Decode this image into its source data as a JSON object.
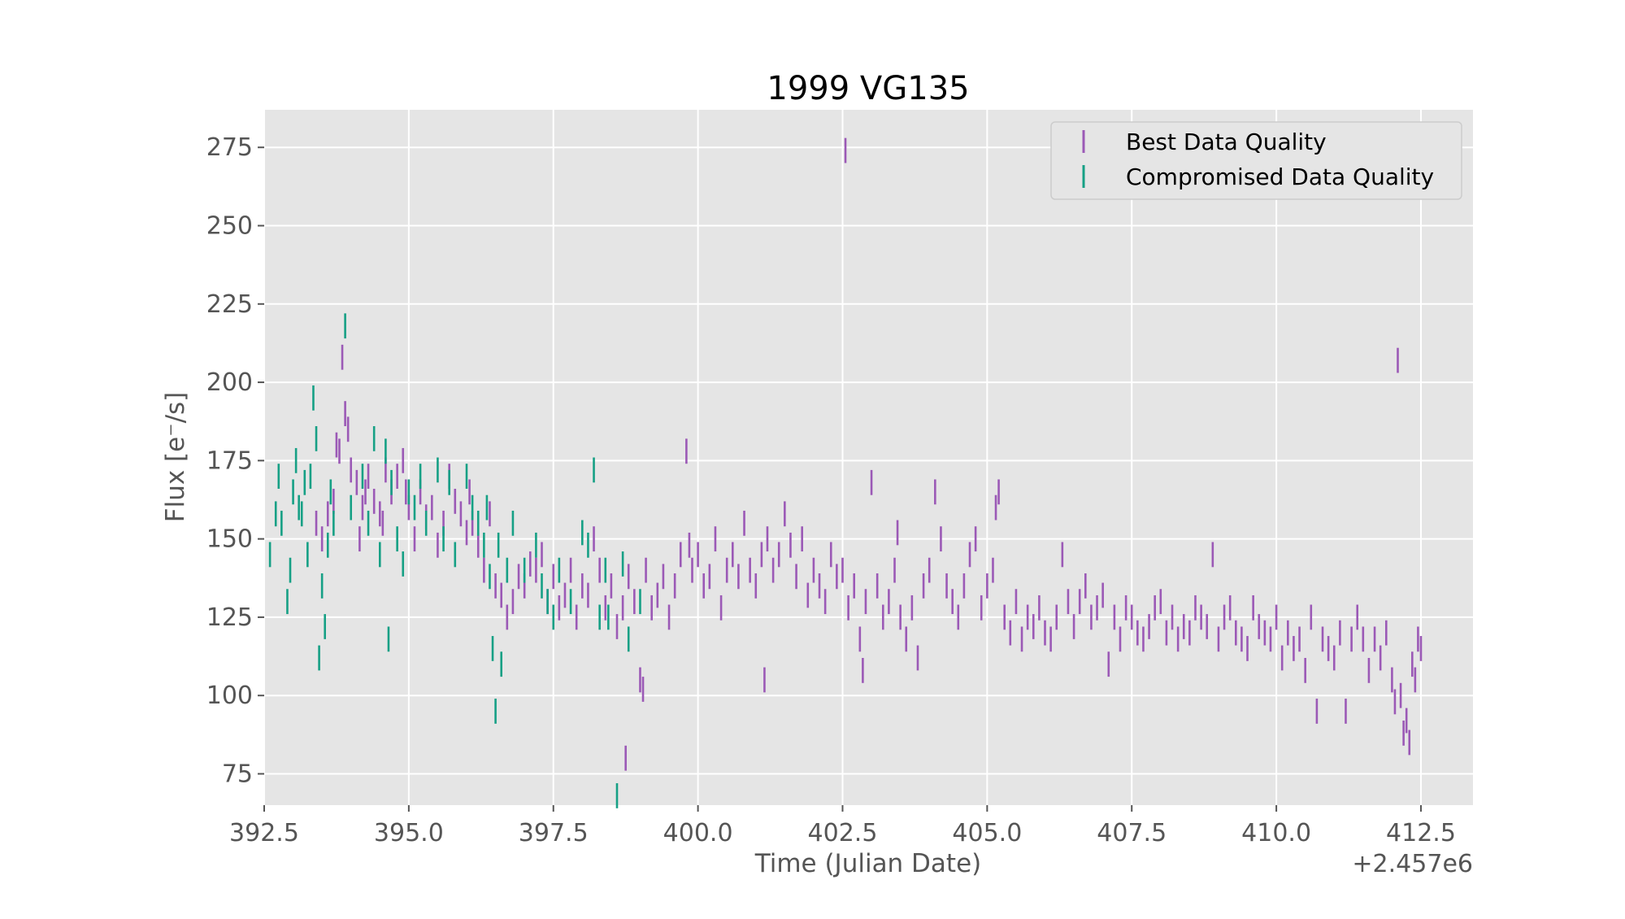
{
  "chart_data": {
    "type": "scatter",
    "title": "1999 VG135",
    "xlabel": "Time (Julian Date)",
    "ylabel": "Flux [e⁻/s]",
    "x_offset_label": "+2.457e6",
    "xlim": [
      392.5,
      413.4
    ],
    "ylim": [
      65,
      287
    ],
    "xticks": [
      392.5,
      395.0,
      397.5,
      400.0,
      402.5,
      405.0,
      407.5,
      410.0,
      412.5
    ],
    "xtick_labels": [
      "392.5",
      "395.0",
      "397.5",
      "400.0",
      "402.5",
      "405.0",
      "407.5",
      "410.0",
      "412.5"
    ],
    "yticks": [
      75,
      100,
      125,
      150,
      175,
      200,
      225,
      250,
      275
    ],
    "ytick_labels": [
      "75",
      "100",
      "125",
      "150",
      "175",
      "200",
      "225",
      "250",
      "275"
    ],
    "grid": true,
    "legend_position": "top-right",
    "error_bar": 4,
    "series": [
      {
        "name": "Best Data Quality",
        "color": "#9b59b6",
        "points": [
          [
            393.4,
            155
          ],
          [
            393.5,
            150
          ],
          [
            393.6,
            158
          ],
          [
            393.7,
            162
          ],
          [
            393.75,
            180
          ],
          [
            393.8,
            178
          ],
          [
            393.85,
            208
          ],
          [
            393.9,
            190
          ],
          [
            393.95,
            185
          ],
          [
            394.0,
            172
          ],
          [
            394.1,
            168
          ],
          [
            394.15,
            150
          ],
          [
            394.2,
            160
          ],
          [
            394.25,
            165
          ],
          [
            394.3,
            170
          ],
          [
            394.4,
            162
          ],
          [
            394.5,
            158
          ],
          [
            394.55,
            155
          ],
          [
            394.6,
            172
          ],
          [
            394.7,
            165
          ],
          [
            394.8,
            170
          ],
          [
            394.9,
            175
          ],
          [
            394.95,
            165
          ],
          [
            395.0,
            160
          ],
          [
            395.1,
            150
          ],
          [
            395.2,
            165
          ],
          [
            395.3,
            157
          ],
          [
            395.4,
            160
          ],
          [
            395.5,
            148
          ],
          [
            395.6,
            155
          ],
          [
            395.7,
            170
          ],
          [
            395.8,
            162
          ],
          [
            395.9,
            158
          ],
          [
            396.0,
            152
          ],
          [
            396.05,
            165
          ],
          [
            396.1,
            155
          ],
          [
            396.2,
            148
          ],
          [
            396.3,
            140
          ],
          [
            396.4,
            158
          ],
          [
            396.5,
            135
          ],
          [
            396.6,
            132
          ],
          [
            396.7,
            125
          ],
          [
            396.8,
            130
          ],
          [
            396.9,
            138
          ],
          [
            397.0,
            135
          ],
          [
            397.1,
            142
          ],
          [
            397.2,
            140
          ],
          [
            397.3,
            145
          ],
          [
            397.4,
            130
          ],
          [
            397.5,
            138
          ],
          [
            397.6,
            128
          ],
          [
            397.7,
            132
          ],
          [
            397.8,
            140
          ],
          [
            397.9,
            125
          ],
          [
            398.0,
            135
          ],
          [
            398.1,
            132
          ],
          [
            398.2,
            150
          ],
          [
            398.3,
            140
          ],
          [
            398.4,
            128
          ],
          [
            398.5,
            135
          ],
          [
            398.6,
            122
          ],
          [
            398.7,
            128
          ],
          [
            398.75,
            80
          ],
          [
            398.8,
            138
          ],
          [
            398.9,
            130
          ],
          [
            399.0,
            105
          ],
          [
            399.05,
            102
          ],
          [
            399.1,
            140
          ],
          [
            399.2,
            128
          ],
          [
            399.3,
            132
          ],
          [
            399.4,
            138
          ],
          [
            399.5,
            125
          ],
          [
            399.6,
            135
          ],
          [
            399.7,
            145
          ],
          [
            399.8,
            178
          ],
          [
            399.85,
            148
          ],
          [
            399.9,
            140
          ],
          [
            400.0,
            145
          ],
          [
            400.1,
            135
          ],
          [
            400.2,
            138
          ],
          [
            400.3,
            150
          ],
          [
            400.4,
            128
          ],
          [
            400.5,
            140
          ],
          [
            400.6,
            145
          ],
          [
            400.7,
            138
          ],
          [
            400.8,
            155
          ],
          [
            400.9,
            140
          ],
          [
            401.0,
            135
          ],
          [
            401.1,
            145
          ],
          [
            401.15,
            105
          ],
          [
            401.2,
            150
          ],
          [
            401.3,
            140
          ],
          [
            401.4,
            145
          ],
          [
            401.5,
            158
          ],
          [
            401.6,
            148
          ],
          [
            401.7,
            138
          ],
          [
            401.8,
            150
          ],
          [
            401.9,
            132
          ],
          [
            402.0,
            140
          ],
          [
            402.1,
            135
          ],
          [
            402.2,
            130
          ],
          [
            402.3,
            145
          ],
          [
            402.4,
            138
          ],
          [
            402.5,
            140
          ],
          [
            402.55,
            274
          ],
          [
            402.6,
            128
          ],
          [
            402.7,
            135
          ],
          [
            402.8,
            118
          ],
          [
            402.85,
            108
          ],
          [
            402.9,
            130
          ],
          [
            403.0,
            168
          ],
          [
            403.1,
            135
          ],
          [
            403.2,
            125
          ],
          [
            403.3,
            130
          ],
          [
            403.4,
            140
          ],
          [
            403.45,
            152
          ],
          [
            403.5,
            125
          ],
          [
            403.6,
            118
          ],
          [
            403.7,
            128
          ],
          [
            403.8,
            112
          ],
          [
            403.9,
            135
          ],
          [
            404.0,
            140
          ],
          [
            404.1,
            165
          ],
          [
            404.2,
            150
          ],
          [
            404.3,
            135
          ],
          [
            404.4,
            130
          ],
          [
            404.5,
            125
          ],
          [
            404.6,
            135
          ],
          [
            404.7,
            145
          ],
          [
            404.8,
            150
          ],
          [
            404.9,
            128
          ],
          [
            405.0,
            135
          ],
          [
            405.1,
            140
          ],
          [
            405.15,
            160
          ],
          [
            405.2,
            165
          ],
          [
            405.3,
            125
          ],
          [
            405.4,
            120
          ],
          [
            405.5,
            130
          ],
          [
            405.6,
            118
          ],
          [
            405.7,
            125
          ],
          [
            405.8,
            122
          ],
          [
            405.9,
            128
          ],
          [
            406.0,
            120
          ],
          [
            406.1,
            118
          ],
          [
            406.2,
            125
          ],
          [
            406.3,
            145
          ],
          [
            406.4,
            130
          ],
          [
            406.5,
            122
          ],
          [
            406.6,
            130
          ],
          [
            406.7,
            135
          ],
          [
            406.8,
            125
          ],
          [
            406.9,
            128
          ],
          [
            407.0,
            132
          ],
          [
            407.1,
            110
          ],
          [
            407.2,
            125
          ],
          [
            407.3,
            118
          ],
          [
            407.4,
            128
          ],
          [
            407.5,
            125
          ],
          [
            407.6,
            120
          ],
          [
            407.7,
            118
          ],
          [
            407.8,
            122
          ],
          [
            407.9,
            128
          ],
          [
            408.0,
            130
          ],
          [
            408.1,
            120
          ],
          [
            408.2,
            125
          ],
          [
            408.3,
            118
          ],
          [
            408.4,
            122
          ],
          [
            408.5,
            120
          ],
          [
            408.6,
            128
          ],
          [
            408.7,
            125
          ],
          [
            408.8,
            122
          ],
          [
            408.9,
            145
          ],
          [
            409.0,
            118
          ],
          [
            409.1,
            125
          ],
          [
            409.2,
            128
          ],
          [
            409.3,
            120
          ],
          [
            409.4,
            118
          ],
          [
            409.5,
            115
          ],
          [
            409.6,
            128
          ],
          [
            409.7,
            122
          ],
          [
            409.8,
            120
          ],
          [
            409.9,
            118
          ],
          [
            410.0,
            125
          ],
          [
            410.1,
            112
          ],
          [
            410.2,
            120
          ],
          [
            410.3,
            115
          ],
          [
            410.4,
            118
          ],
          [
            410.5,
            108
          ],
          [
            410.6,
            125
          ],
          [
            410.7,
            95
          ],
          [
            410.8,
            118
          ],
          [
            410.9,
            115
          ],
          [
            411.0,
            112
          ],
          [
            411.1,
            120
          ],
          [
            411.2,
            95
          ],
          [
            411.3,
            118
          ],
          [
            411.4,
            125
          ],
          [
            411.5,
            118
          ],
          [
            411.6,
            108
          ],
          [
            411.7,
            118
          ],
          [
            411.8,
            112
          ],
          [
            411.9,
            120
          ],
          [
            412.0,
            105
          ],
          [
            412.05,
            98
          ],
          [
            412.1,
            207
          ],
          [
            412.15,
            100
          ],
          [
            412.2,
            88
          ],
          [
            412.25,
            92
          ],
          [
            412.3,
            85
          ],
          [
            412.35,
            110
          ],
          [
            412.4,
            105
          ],
          [
            412.45,
            118
          ],
          [
            412.5,
            115
          ]
        ]
      },
      {
        "name": "Compromised Data Quality",
        "color": "#16a085",
        "points": [
          [
            392.6,
            145
          ],
          [
            392.7,
            158
          ],
          [
            392.75,
            170
          ],
          [
            392.8,
            155
          ],
          [
            392.9,
            130
          ],
          [
            392.95,
            140
          ],
          [
            393.0,
            165
          ],
          [
            393.05,
            175
          ],
          [
            393.1,
            160
          ],
          [
            393.15,
            158
          ],
          [
            393.2,
            168
          ],
          [
            393.25,
            145
          ],
          [
            393.3,
            170
          ],
          [
            393.35,
            195
          ],
          [
            393.4,
            182
          ],
          [
            393.45,
            112
          ],
          [
            393.5,
            135
          ],
          [
            393.55,
            122
          ],
          [
            393.6,
            148
          ],
          [
            393.65,
            165
          ],
          [
            393.7,
            155
          ],
          [
            393.9,
            218
          ],
          [
            394.0,
            160
          ],
          [
            394.2,
            170
          ],
          [
            394.3,
            155
          ],
          [
            394.4,
            182
          ],
          [
            394.5,
            145
          ],
          [
            394.6,
            178
          ],
          [
            394.65,
            118
          ],
          [
            394.7,
            168
          ],
          [
            394.8,
            150
          ],
          [
            394.9,
            142
          ],
          [
            395.0,
            165
          ],
          [
            395.1,
            160
          ],
          [
            395.2,
            170
          ],
          [
            395.3,
            155
          ],
          [
            395.5,
            172
          ],
          [
            395.6,
            150
          ],
          [
            395.7,
            168
          ],
          [
            395.8,
            145
          ],
          [
            396.0,
            170
          ],
          [
            396.1,
            160
          ],
          [
            396.2,
            155
          ],
          [
            396.3,
            148
          ],
          [
            396.35,
            160
          ],
          [
            396.4,
            138
          ],
          [
            396.45,
            115
          ],
          [
            396.5,
            95
          ],
          [
            396.55,
            148
          ],
          [
            396.6,
            110
          ],
          [
            396.7,
            140
          ],
          [
            396.8,
            155
          ],
          [
            397.0,
            140
          ],
          [
            397.2,
            148
          ],
          [
            397.3,
            135
          ],
          [
            397.4,
            130
          ],
          [
            397.5,
            125
          ],
          [
            397.6,
            140
          ],
          [
            397.8,
            130
          ],
          [
            398.0,
            152
          ],
          [
            398.1,
            148
          ],
          [
            398.2,
            172
          ],
          [
            398.3,
            125
          ],
          [
            398.4,
            140
          ],
          [
            398.45,
            125
          ],
          [
            398.6,
            68
          ],
          [
            398.7,
            142
          ],
          [
            398.8,
            118
          ],
          [
            399.0,
            130
          ]
        ]
      }
    ]
  }
}
